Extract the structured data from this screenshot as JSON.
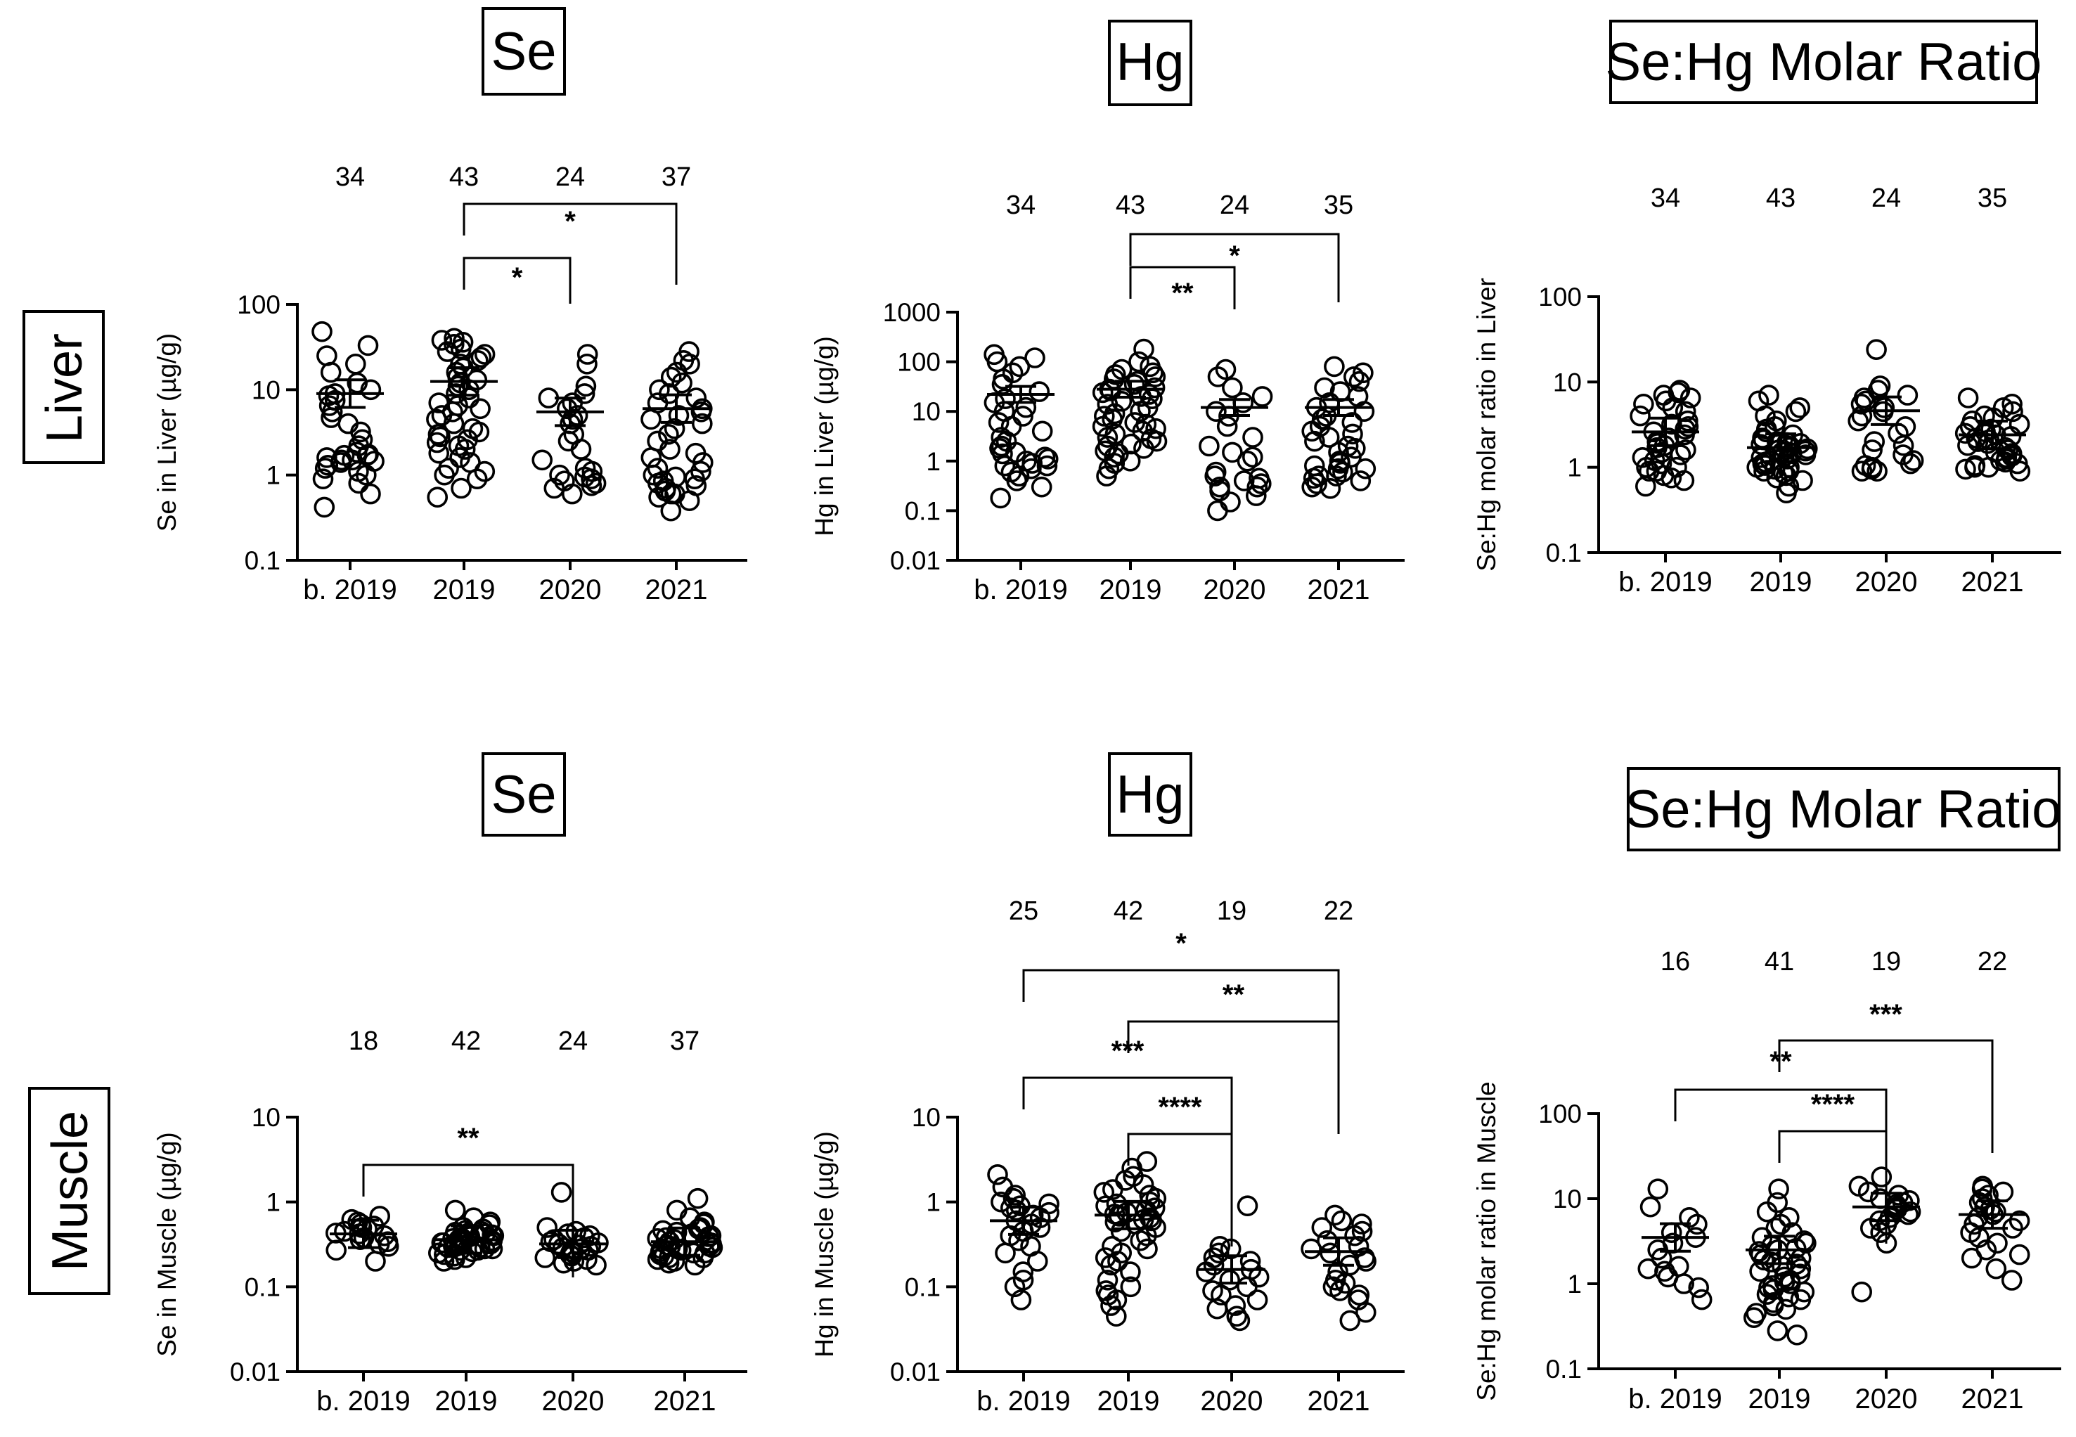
{
  "row_labels": [
    "Liver",
    "Muscle"
  ],
  "categories": [
    "b. 2019",
    "2019",
    "2020",
    "2021"
  ],
  "chart_data": [
    {
      "type": "scatter",
      "title": "Se",
      "ylabel": "Se in Liver (µg/g)",
      "yscale": "log",
      "ylim": [
        0.1,
        100
      ],
      "yticks": [
        "0.1",
        "1",
        "10",
        "100"
      ],
      "categories": [
        "b. 2019",
        "2019",
        "2020",
        "2021"
      ],
      "n": [
        "34",
        "43",
        "24",
        "37"
      ],
      "means": [
        9.0,
        12.5,
        5.5,
        6.0
      ],
      "significance": [
        {
          "from": "2019",
          "to": "2021",
          "label": "*"
        },
        {
          "from": "2019",
          "to": "2020",
          "label": "*"
        }
      ],
      "series": [
        {
          "category": "b. 2019",
          "values": [
            48,
            33,
            25,
            20,
            16,
            12,
            10,
            9,
            8.5,
            7.5,
            6.5,
            5.5,
            4.7,
            4,
            3.2,
            2.6,
            2.2,
            1.85,
            1.75,
            1.7,
            1.7,
            1.6,
            1.5,
            1.5,
            1.45,
            1.4,
            1.3,
            1.2,
            1.1,
            1.0,
            0.9,
            0.8,
            0.6,
            0.42
          ]
        },
        {
          "category": "2019",
          "values": [
            40,
            38,
            36,
            34,
            30,
            28,
            26,
            24,
            22,
            20,
            18,
            16,
            14,
            13,
            12,
            11,
            10,
            9,
            8,
            7,
            6.5,
            6,
            5.5,
            5,
            4.5,
            4,
            3.5,
            3.2,
            3,
            2.8,
            2.6,
            2.4,
            2.2,
            2,
            1.8,
            1.6,
            1.4,
            1.2,
            1.1,
            1,
            0.9,
            0.7,
            0.55
          ]
        },
        {
          "category": "2020",
          "values": [
            26,
            20,
            11,
            9,
            8,
            7,
            6,
            5,
            4.5,
            4,
            3,
            2.5,
            2,
            1.5,
            1.2,
            1.1,
            1,
            0.95,
            0.9,
            0.85,
            0.8,
            0.75,
            0.7,
            0.6
          ]
        },
        {
          "category": "2021",
          "values": [
            28,
            22,
            20,
            16,
            14,
            12,
            10,
            9,
            8,
            7,
            6,
            5.5,
            5,
            4.5,
            4,
            3.5,
            3,
            2.5,
            2,
            1.8,
            1.6,
            1.4,
            1.2,
            1.1,
            1,
            0.95,
            0.9,
            0.85,
            0.8,
            0.75,
            0.7,
            0.65,
            0.6,
            0.6,
            0.55,
            0.5,
            0.38
          ]
        }
      ]
    },
    {
      "type": "scatter",
      "title": "Hg",
      "ylabel": "Hg in Liver (µg/g)",
      "yscale": "log",
      "ylim": [
        0.01,
        1000
      ],
      "yticks": [
        "0.01",
        "0.1",
        "1",
        "10",
        "100",
        "1000"
      ],
      "categories": [
        "b. 2019",
        "2019",
        "2020",
        "2021"
      ],
      "n": [
        "34",
        "43",
        "24",
        "35"
      ],
      "means": [
        22,
        28,
        12,
        12
      ],
      "significance": [
        {
          "from": "2019",
          "to": "2021",
          "label": "*"
        },
        {
          "from": "2019",
          "to": "2020",
          "label": "**"
        }
      ],
      "series": [
        {
          "category": "b. 2019",
          "values": [
            140,
            120,
            100,
            80,
            60,
            45,
            35,
            25,
            18,
            15,
            12,
            10,
            8,
            6,
            5,
            4,
            3,
            2.5,
            2,
            1.8,
            1.5,
            1.4,
            1.2,
            1.1,
            1,
            0.9,
            0.8,
            0.8,
            0.7,
            0.6,
            0.5,
            0.4,
            0.3,
            0.18
          ]
        },
        {
          "category": "2019",
          "values": [
            180,
            100,
            80,
            70,
            60,
            55,
            50,
            45,
            40,
            35,
            30,
            28,
            26,
            24,
            22,
            20,
            18,
            16,
            14,
            12,
            10,
            9,
            8,
            7,
            6,
            5.5,
            5,
            4.5,
            4,
            3.5,
            3,
            2.8,
            2.5,
            2.2,
            2,
            1.8,
            1.6,
            1.4,
            1.2,
            1,
            0.9,
            0.7,
            0.5
          ]
        },
        {
          "category": "2020",
          "values": [
            70,
            50,
            30,
            20,
            15,
            10,
            8,
            5,
            3,
            2,
            1.5,
            1.2,
            1,
            0.6,
            0.5,
            0.45,
            0.4,
            0.35,
            0.3,
            0.3,
            0.25,
            0.2,
            0.15,
            0.1
          ]
        },
        {
          "category": "2021",
          "values": [
            80,
            60,
            50,
            40,
            30,
            25,
            20,
            15,
            12,
            10,
            8,
            7,
            6,
            5,
            4,
            3.5,
            3,
            2.5,
            2,
            1.8,
            1.5,
            1.2,
            1,
            0.9,
            0.8,
            0.7,
            0.7,
            0.6,
            0.5,
            0.5,
            0.45,
            0.4,
            0.35,
            0.3,
            0.28
          ]
        }
      ]
    },
    {
      "type": "scatter",
      "title": "Se:Hg Molar Ratio",
      "ylabel": "Se:Hg molar ratio in Liver",
      "yscale": "log",
      "ylim": [
        0.1,
        100
      ],
      "yticks": [
        "0.1",
        "1",
        "10",
        "100"
      ],
      "categories": [
        "b. 2019",
        "2019",
        "2020",
        "2021"
      ],
      "n": [
        "34",
        "43",
        "24",
        "35"
      ],
      "means": [
        2.6,
        1.7,
        4.6,
        2.4
      ],
      "significance": [],
      "series": [
        {
          "category": "b. 2019",
          "values": [
            8,
            7.5,
            7,
            6.5,
            6,
            5.5,
            5,
            4.5,
            4,
            3.5,
            3.2,
            3,
            2.8,
            2.6,
            2.4,
            2.2,
            2,
            1.9,
            1.8,
            1.7,
            1.6,
            1.5,
            1.4,
            1.3,
            1.2,
            1.1,
            1,
            1,
            0.9,
            0.9,
            0.8,
            0.75,
            0.7,
            0.6
          ]
        },
        {
          "category": "2019",
          "values": [
            7,
            6,
            5,
            4.5,
            4,
            3.5,
            3,
            2.8,
            2.6,
            2.4,
            2.2,
            2.1,
            2,
            1.95,
            1.9,
            1.85,
            1.8,
            1.75,
            1.7,
            1.65,
            1.6,
            1.55,
            1.5,
            1.45,
            1.4,
            1.35,
            1.3,
            1.25,
            1.2,
            1.15,
            1.1,
            1.05,
            1,
            1,
            0.95,
            0.9,
            0.9,
            0.85,
            0.8,
            0.75,
            0.7,
            0.6,
            0.5
          ]
        },
        {
          "category": "2020",
          "values": [
            24,
            9,
            8,
            7,
            6.5,
            6,
            5.5,
            5,
            4.5,
            4,
            3.5,
            3,
            2.5,
            2,
            1.8,
            1.6,
            1.4,
            1.2,
            1.1,
            1.05,
            1,
            0.95,
            0.9,
            0.9
          ]
        },
        {
          "category": "2021",
          "values": [
            6.5,
            5.5,
            5,
            4.5,
            4,
            3.8,
            3.5,
            3.2,
            3,
            2.8,
            2.6,
            2.5,
            2.4,
            2.3,
            2.2,
            2.1,
            2,
            1.9,
            1.8,
            1.7,
            1.6,
            1.5,
            1.45,
            1.4,
            1.35,
            1.3,
            1.25,
            1.2,
            1.15,
            1.1,
            1.05,
            1,
            1,
            0.95,
            0.9
          ]
        }
      ]
    },
    {
      "type": "scatter",
      "title": "Se",
      "ylabel": "Se in Muscle (µg/g)",
      "yscale": "log",
      "ylim": [
        0.01,
        10
      ],
      "yticks": [
        "0.01",
        "0.1",
        "1",
        "10"
      ],
      "categories": [
        "b. 2019",
        "2019",
        "2020",
        "2021"
      ],
      "n": [
        "18",
        "42",
        "24",
        "37"
      ],
      "means": [
        0.42,
        0.36,
        0.32,
        0.34
      ],
      "significance": [
        {
          "from": "b. 2019",
          "to": "2020",
          "label": "**"
        }
      ],
      "series": [
        {
          "category": "b. 2019",
          "values": [
            0.68,
            0.62,
            0.58,
            0.55,
            0.52,
            0.5,
            0.48,
            0.45,
            0.43,
            0.42,
            0.4,
            0.38,
            0.36,
            0.34,
            0.32,
            0.3,
            0.27,
            0.2
          ]
        },
        {
          "category": "2019",
          "values": [
            0.8,
            0.65,
            0.58,
            0.54,
            0.5,
            0.48,
            0.46,
            0.45,
            0.44,
            0.43,
            0.42,
            0.41,
            0.4,
            0.39,
            0.38,
            0.37,
            0.36,
            0.36,
            0.35,
            0.35,
            0.34,
            0.34,
            0.33,
            0.33,
            0.32,
            0.32,
            0.31,
            0.3,
            0.3,
            0.29,
            0.29,
            0.28,
            0.28,
            0.27,
            0.27,
            0.26,
            0.25,
            0.24,
            0.23,
            0.22,
            0.21,
            0.2
          ]
        },
        {
          "category": "2020",
          "values": [
            1.3,
            0.5,
            0.45,
            0.42,
            0.4,
            0.38,
            0.36,
            0.34,
            0.33,
            0.32,
            0.31,
            0.3,
            0.29,
            0.28,
            0.27,
            0.26,
            0.25,
            0.24,
            0.23,
            0.22,
            0.21,
            0.2,
            0.19,
            0.18
          ]
        },
        {
          "category": "2021",
          "values": [
            1.1,
            0.8,
            0.65,
            0.58,
            0.55,
            0.5,
            0.48,
            0.46,
            0.44,
            0.42,
            0.4,
            0.39,
            0.38,
            0.37,
            0.36,
            0.35,
            0.34,
            0.33,
            0.32,
            0.31,
            0.3,
            0.3,
            0.29,
            0.28,
            0.28,
            0.27,
            0.26,
            0.25,
            0.25,
            0.24,
            0.23,
            0.22,
            0.22,
            0.21,
            0.2,
            0.19,
            0.18
          ]
        }
      ]
    },
    {
      "type": "scatter",
      "title": "Hg",
      "ylabel": "Hg in Muscle (µg/g)",
      "yscale": "log",
      "ylim": [
        0.01,
        10
      ],
      "yticks": [
        "0.01",
        "0.1",
        "1",
        "10"
      ],
      "categories": [
        "b. 2019",
        "2019",
        "2020",
        "2021"
      ],
      "n": [
        "25",
        "42",
        "19",
        "22"
      ],
      "means": [
        0.6,
        0.7,
        0.16,
        0.26
      ],
      "significance": [
        {
          "from": "b. 2019",
          "to": "2021",
          "label": "*"
        },
        {
          "from": "2019",
          "to": "2021",
          "label": "**"
        },
        {
          "from": "b. 2019",
          "to": "2020",
          "label": "***"
        },
        {
          "from": "2019",
          "to": "2020",
          "label": "****"
        }
      ],
      "series": [
        {
          "category": "b. 2019",
          "values": [
            2.1,
            1.5,
            1.2,
            1.1,
            1,
            0.95,
            0.9,
            0.85,
            0.8,
            0.75,
            0.7,
            0.65,
            0.6,
            0.55,
            0.5,
            0.45,
            0.4,
            0.35,
            0.3,
            0.25,
            0.2,
            0.15,
            0.12,
            0.1,
            0.07
          ]
        },
        {
          "category": "2019",
          "values": [
            3,
            2.5,
            2,
            1.8,
            1.6,
            1.4,
            1.3,
            1.2,
            1.1,
            1,
            0.95,
            0.9,
            0.85,
            0.8,
            0.78,
            0.75,
            0.72,
            0.7,
            0.68,
            0.65,
            0.62,
            0.6,
            0.58,
            0.55,
            0.5,
            0.45,
            0.4,
            0.35,
            0.3,
            0.28,
            0.25,
            0.22,
            0.2,
            0.18,
            0.15,
            0.12,
            0.1,
            0.09,
            0.08,
            0.07,
            0.06,
            0.045
          ]
        },
        {
          "category": "2020",
          "values": [
            0.9,
            0.3,
            0.28,
            0.25,
            0.22,
            0.2,
            0.18,
            0.16,
            0.15,
            0.13,
            0.12,
            0.1,
            0.09,
            0.08,
            0.07,
            0.06,
            0.055,
            0.045,
            0.04
          ]
        },
        {
          "category": "2021",
          "values": [
            0.7,
            0.6,
            0.55,
            0.5,
            0.45,
            0.4,
            0.35,
            0.3,
            0.28,
            0.25,
            0.22,
            0.2,
            0.18,
            0.15,
            0.12,
            0.11,
            0.1,
            0.09,
            0.08,
            0.07,
            0.05,
            0.04
          ]
        }
      ]
    },
    {
      "type": "scatter",
      "title": "Se:Hg Molar Ratio",
      "ylabel": "Se:Hg molar ratio in Muscle",
      "yscale": "log",
      "ylim": [
        0.1,
        100
      ],
      "yticks": [
        "0.1",
        "1",
        "10",
        "100"
      ],
      "categories": [
        "b. 2019",
        "2019",
        "2020",
        "2021"
      ],
      "n": [
        "16",
        "41",
        "19",
        "22"
      ],
      "means": [
        3.5,
        2.5,
        8,
        6.5
      ],
      "significance": [
        {
          "from": "2019",
          "to": "2021",
          "label": "***"
        },
        {
          "from": "b. 2019",
          "to": "2020",
          "label": "**"
        },
        {
          "from": "2019",
          "to": "2020",
          "label": "****"
        }
      ],
      "series": [
        {
          "category": "b. 2019",
          "values": [
            13,
            8,
            6,
            5,
            4,
            3.5,
            3,
            2.5,
            2,
            1.6,
            1.5,
            1.4,
            1.2,
            1,
            0.9,
            0.65
          ]
        },
        {
          "category": "2019",
          "values": [
            13,
            9,
            7,
            6,
            5,
            4.5,
            4,
            3.5,
            3.2,
            3,
            2.8,
            2.6,
            2.5,
            2.4,
            2.2,
            2,
            1.9,
            1.8,
            1.7,
            1.6,
            1.5,
            1.4,
            1.3,
            1.2,
            1.1,
            1.05,
            1,
            0.95,
            0.9,
            0.85,
            0.8,
            0.75,
            0.7,
            0.65,
            0.6,
            0.55,
            0.5,
            0.45,
            0.4,
            0.28,
            0.25
          ]
        },
        {
          "category": "2020",
          "values": [
            18,
            14,
            12,
            11,
            10,
            9.5,
            9,
            8.5,
            8,
            7.5,
            7,
            6.5,
            6,
            5.5,
            5,
            4.5,
            4,
            3,
            0.8
          ]
        },
        {
          "category": "2021",
          "values": [
            14,
            13,
            12,
            11,
            10,
            9,
            8,
            7.5,
            7,
            6.5,
            6,
            5.5,
            5,
            4.5,
            4,
            3.5,
            3,
            2.5,
            2.2,
            2,
            1.5,
            1.1
          ]
        }
      ]
    }
  ]
}
